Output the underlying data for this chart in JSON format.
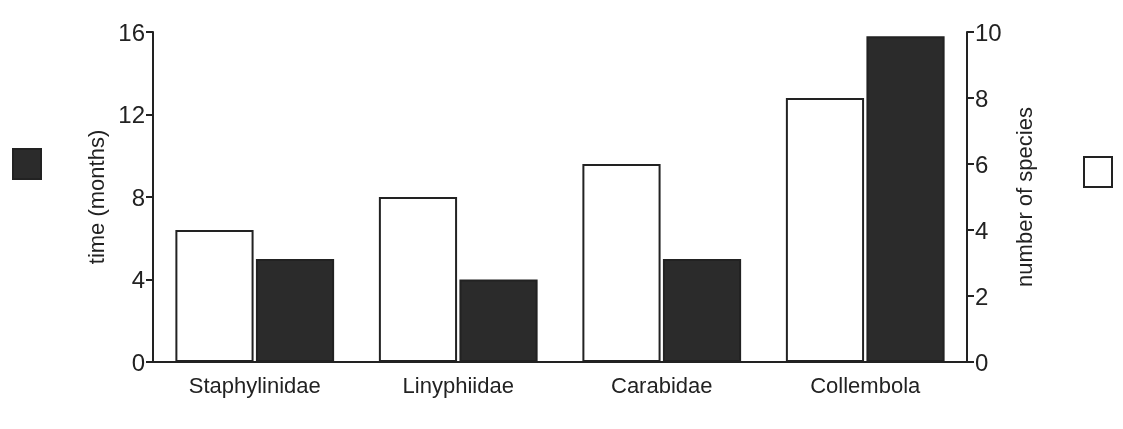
{
  "chart_data": {
    "type": "bar",
    "ylabel": "time (months)",
    "y2label": "number of species",
    "categories": [
      "Staphylinidae",
      "Linyphiidae",
      "Carabidae",
      "Collembola"
    ],
    "series": [
      {
        "color": "#ffffff",
        "axis": "y2",
        "values": [
          4,
          5,
          6,
          8
        ]
      },
      {
        "color": "#2b2b2b",
        "values": [
          5,
          4,
          5,
          15.8
        ]
      }
    ],
    "ylim": [
      0,
      16
    ],
    "yticks": [
      0,
      4,
      8,
      12,
      16
    ],
    "y2lim": [
      0,
      10
    ],
    "y2ticks": [
      0,
      2,
      4,
      6,
      8,
      10
    ]
  }
}
